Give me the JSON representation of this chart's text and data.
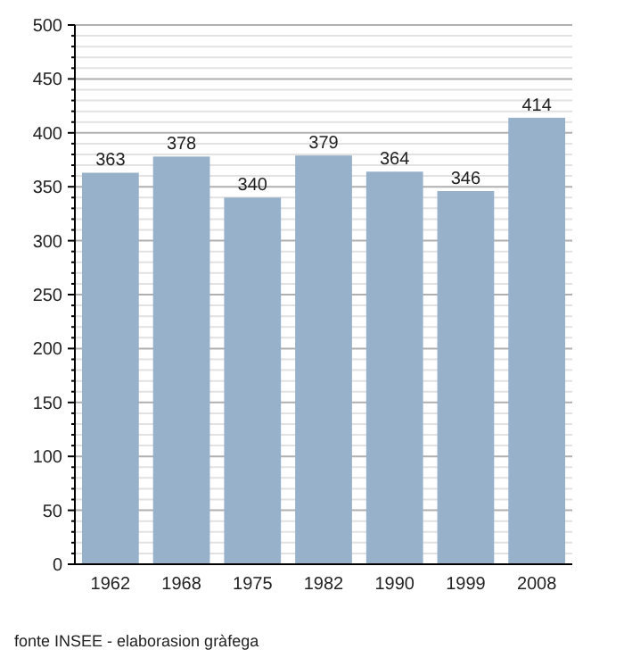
{
  "chart_data": {
    "type": "bar",
    "categories": [
      "1962",
      "1968",
      "1975",
      "1982",
      "1990",
      "1999",
      "2008"
    ],
    "values": [
      363,
      378,
      340,
      379,
      364,
      346,
      414
    ],
    "color": "#97b1cb",
    "ylim": [
      0,
      500
    ],
    "yticks": [
      0,
      50,
      100,
      150,
      200,
      250,
      300,
      350,
      400,
      450,
      500
    ],
    "grid": "y",
    "data_labels": true,
    "annotations": [
      "fonte INSEE - elaborasion gràfega"
    ]
  }
}
